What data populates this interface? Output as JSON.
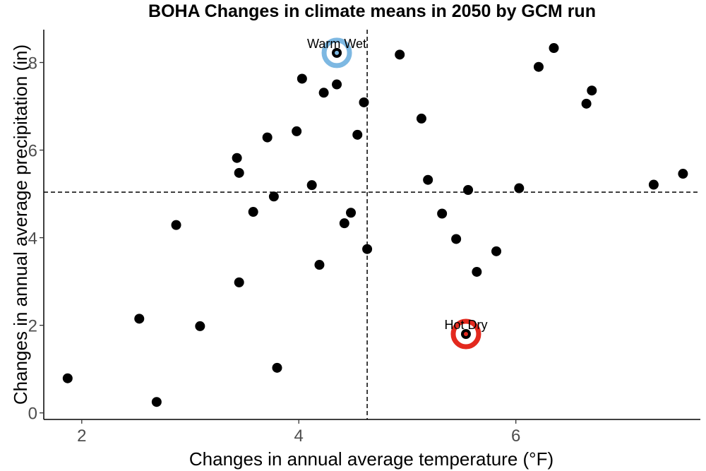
{
  "chart_data": {
    "type": "scatter",
    "title": "BOHA Changes in climate means in 2050 by GCM run",
    "xlabel": "Changes in annual average temperature (°F)",
    "ylabel": "Changes in annual average precipitation (in)",
    "xlim": [
      1.65,
      7.7
    ],
    "ylim": [
      -0.15,
      8.75
    ],
    "xticks": [
      2,
      4,
      6
    ],
    "yticks": [
      0,
      2,
      4,
      6,
      8
    ],
    "reference_lines": {
      "x": 4.63,
      "y": 5.04
    },
    "grid": false,
    "point_color": "#000000",
    "points": [
      {
        "x": 1.87,
        "y": 0.79
      },
      {
        "x": 2.53,
        "y": 2.15
      },
      {
        "x": 2.69,
        "y": 0.25
      },
      {
        "x": 2.87,
        "y": 4.29
      },
      {
        "x": 3.09,
        "y": 1.98
      },
      {
        "x": 3.43,
        "y": 5.82
      },
      {
        "x": 3.45,
        "y": 5.48
      },
      {
        "x": 3.45,
        "y": 2.98
      },
      {
        "x": 3.58,
        "y": 4.59
      },
      {
        "x": 3.71,
        "y": 6.29
      },
      {
        "x": 3.77,
        "y": 4.94
      },
      {
        "x": 3.8,
        "y": 1.03
      },
      {
        "x": 3.98,
        "y": 6.43
      },
      {
        "x": 4.03,
        "y": 7.63
      },
      {
        "x": 4.12,
        "y": 5.2
      },
      {
        "x": 4.19,
        "y": 3.38
      },
      {
        "x": 4.23,
        "y": 7.31
      },
      {
        "x": 4.35,
        "y": 8.22
      },
      {
        "x": 4.35,
        "y": 7.5
      },
      {
        "x": 4.42,
        "y": 4.33
      },
      {
        "x": 4.48,
        "y": 4.57
      },
      {
        "x": 4.54,
        "y": 6.35
      },
      {
        "x": 4.6,
        "y": 7.09
      },
      {
        "x": 4.63,
        "y": 3.74
      },
      {
        "x": 4.93,
        "y": 8.18
      },
      {
        "x": 5.13,
        "y": 6.72
      },
      {
        "x": 5.19,
        "y": 5.32
      },
      {
        "x": 5.32,
        "y": 4.55
      },
      {
        "x": 5.45,
        "y": 3.97
      },
      {
        "x": 5.54,
        "y": 1.8
      },
      {
        "x": 5.56,
        "y": 5.09
      },
      {
        "x": 5.64,
        "y": 3.22
      },
      {
        "x": 5.82,
        "y": 3.69
      },
      {
        "x": 6.03,
        "y": 5.13
      },
      {
        "x": 6.21,
        "y": 7.9
      },
      {
        "x": 6.35,
        "y": 8.33
      },
      {
        "x": 6.65,
        "y": 7.06
      },
      {
        "x": 6.7,
        "y": 7.36
      },
      {
        "x": 7.27,
        "y": 5.21
      },
      {
        "x": 7.54,
        "y": 5.46
      }
    ],
    "highlights": [
      {
        "label": "Warm Wet",
        "x": 4.35,
        "y": 8.22,
        "ring_color": "#7db8e2",
        "center_color": "#7db8e2"
      },
      {
        "label": "Hot Dry",
        "x": 5.54,
        "y": 1.8,
        "ring_color": "#e3291e",
        "center_color": "#e3291e"
      }
    ]
  }
}
